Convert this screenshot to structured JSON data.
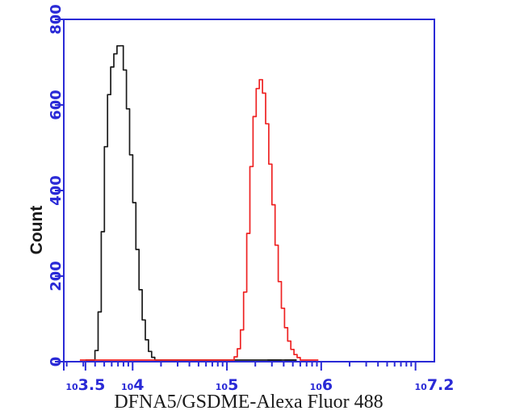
{
  "page": {
    "background": "#ffffff",
    "description": "Flow cytometry single-parameter histogram overlay with two peaks"
  },
  "chart_data": {
    "type": "area",
    "subtype": "flow-cytometry-histogram-overlay",
    "title": "",
    "xlabel": "DFNA5/GSDME-Alexa Fluor 488",
    "ylabel": "Count",
    "grid": false,
    "legend": "none",
    "axis_color": "#2a2ad6",
    "text_color_ticks": "#2a2ad6",
    "text_color_labels": "#1a1a1a",
    "x_scale": "log10",
    "x_log_range": [
      3.27,
      7.2
    ],
    "x_major_tick_logs": [
      3.27,
      3.5,
      4,
      5,
      6,
      7
    ],
    "x_labeled_ticks": [
      {
        "log": 3.5,
        "base": "10",
        "exp": "3.5"
      },
      {
        "log": 4,
        "base": "10",
        "exp": "4"
      },
      {
        "log": 5,
        "base": "10",
        "exp": "5"
      },
      {
        "log": 6,
        "base": "10",
        "exp": "6"
      },
      {
        "log": 7.2,
        "base": "10",
        "exp": "7.2"
      }
    ],
    "y_axis": {
      "min": 0,
      "max": 800,
      "major_ticks": [
        0,
        200,
        400,
        600,
        800
      ]
    },
    "series": [
      {
        "name": "black-curve",
        "color": "#1a1a1a",
        "peak": {
          "log_x": 3.88,
          "count": 750
        },
        "baseline_log_extent": [
          3.5,
          5.74
        ],
        "points": {
          "log_x": [
            3.5,
            3.585,
            3.61,
            3.635,
            3.66,
            3.685,
            3.71,
            3.735,
            3.76,
            3.785,
            3.81,
            3.845,
            3.875,
            3.905,
            3.935,
            3.965,
            4.0,
            4.035,
            4.07,
            4.105,
            4.14,
            4.175,
            4.21,
            4.25,
            5.74
          ],
          "count": [
            0,
            0,
            10,
            55,
            150,
            310,
            470,
            580,
            650,
            690,
            715,
            735,
            750,
            710,
            640,
            545,
            430,
            310,
            200,
            115,
            58,
            25,
            8,
            0,
            0
          ]
        }
      },
      {
        "name": "red-curve",
        "color": "#ee2222",
        "peak": {
          "log_x": 5.37,
          "count": 660
        },
        "baseline_log_extent": [
          3.44,
          5.97
        ],
        "points": {
          "log_x": [
            3.44,
            5.06,
            5.095,
            5.125,
            5.155,
            5.185,
            5.215,
            5.245,
            5.275,
            5.305,
            5.335,
            5.365,
            5.395,
            5.425,
            5.455,
            5.49,
            5.525,
            5.56,
            5.6,
            5.64,
            5.68,
            5.73,
            5.79,
            5.97
          ],
          "count": [
            0,
            0,
            8,
            25,
            60,
            130,
            240,
            390,
            520,
            605,
            650,
            660,
            625,
            560,
            475,
            375,
            275,
            185,
            110,
            60,
            30,
            12,
            0,
            0
          ]
        }
      }
    ],
    "baseline_black_dash_segments_log": [
      [
        5.43,
        5.58
      ],
      [
        5.61,
        5.74
      ]
    ]
  }
}
